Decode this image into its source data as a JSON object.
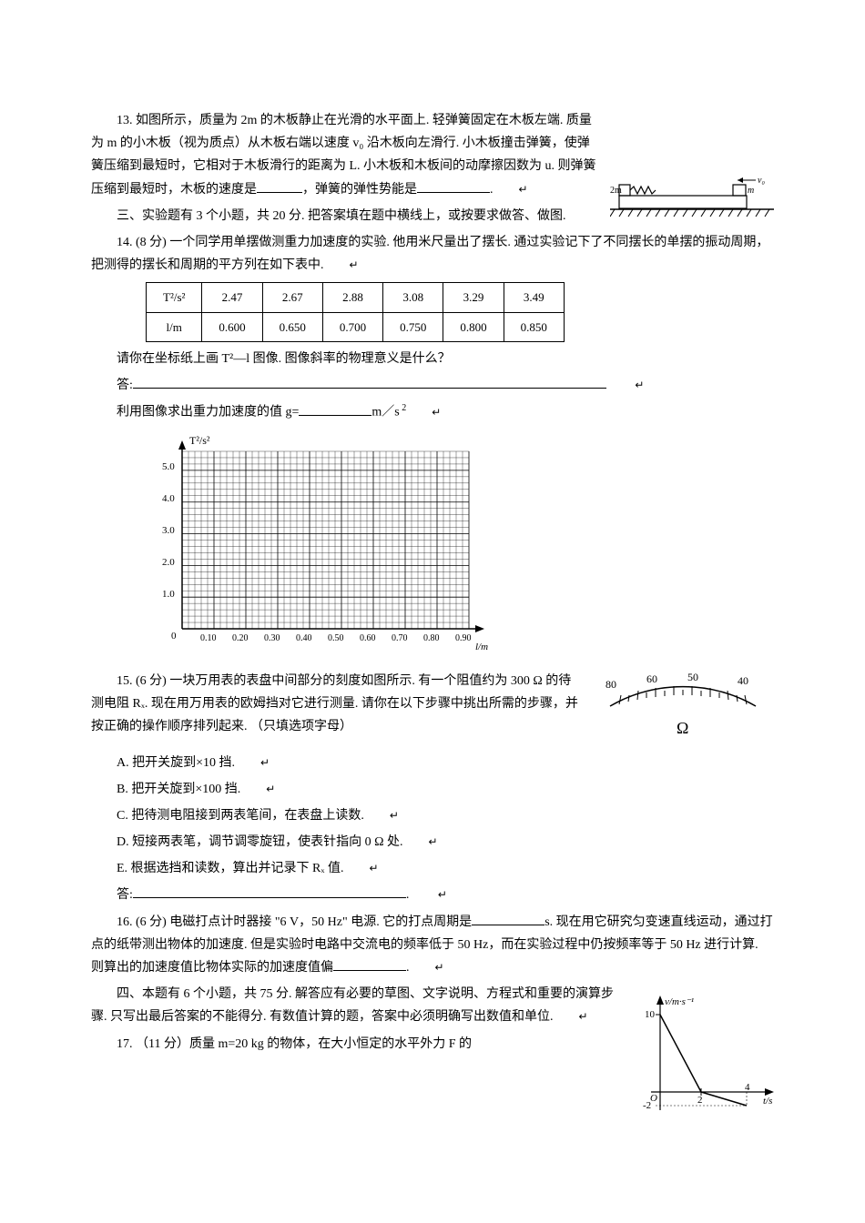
{
  "q13": {
    "text": "13. 如图所示，质量为 2m 的木板静止在光滑的水平面上. 轻弹簧固定在木板左端. 质量为 m 的小木板（视为质点）从木板右端以速度 v₀ 沿木板向左滑行. 小木板撞击弹簧，使弹簧压缩到最短时，它相对于木板滑行的距离为 L. 小木板和木板间的动摩擦因数为 u. 则弹簧压缩到最短时，木板的速度是",
    "text2": "，弹簧的弹性势能是",
    "text3": ".",
    "diagram": {
      "label_2m": "2m",
      "label_m": "m",
      "label_v0": "v₀"
    }
  },
  "section3": {
    "title": "三、实验题有 3 个小题，共 20 分. 把答案填在题中横线上，或按要求做答、做图."
  },
  "q14": {
    "intro": "14. (8 分) 一个同学用单摆做测重力加速度的实验. 他用米尺量出了摆长. 通过实验记下了不同摆长的单摆的振动周期，把测得的摆长和周期的平方列在如下表中.",
    "table": {
      "row1_label": "T²/s²",
      "row1": [
        "2.47",
        "2.67",
        "2.88",
        "3.08",
        "3.29",
        "3.49"
      ],
      "row2_label": "l/m",
      "row2": [
        "0.600",
        "0.650",
        "0.700",
        "0.750",
        "0.800",
        "0.850"
      ]
    },
    "prompt1": "请你在坐标纸上画 T²—l 图像. 图像斜率的物理意义是什么？",
    "answer_label": "答:",
    "prompt2_a": "利用图像求出重力加速度的值 g=",
    "prompt2_b": "m／s",
    "graph": {
      "ylabel": "T²/s²",
      "xlabel": "l/m",
      "yticks": [
        "1.0",
        "2.0",
        "3.0",
        "4.0",
        "5.0"
      ],
      "xticks": [
        "0.10",
        "0.20",
        "0.30",
        "0.40",
        "0.50",
        "0.60",
        "0.70",
        "0.80",
        "0.90"
      ],
      "bg_color": "#ffffff",
      "grid_color": "#000000"
    }
  },
  "q15": {
    "intro": "15. (6 分) 一块万用表的表盘中间部分的刻度如图所示. 有一个阻值约为 300 Ω 的待测电阻 Rₓ. 现在用万用表的欧姆挡对它进行测量. 请你在以下步骤中挑出所需的步骤，并按正确的操作顺序排列起来. （只填选项字母）",
    "options": {
      "A": "A. 把开关旋到×10 挡.",
      "B": "B. 把开关旋到×100 挡.",
      "C": "C. 把待测电阻接到两表笔间，在表盘上读数.",
      "D": "D. 短接两表笔，调节调零旋钮，使表针指向 0 Ω 处.",
      "E": "E. 根据选挡和读数，算出并记录下 Rₓ 值."
    },
    "answer_label": "答:",
    "dial": {
      "labels": [
        "80",
        "60",
        "50",
        "40"
      ],
      "unit": "Ω"
    }
  },
  "q16": {
    "text_a": "16. (6 分) 电磁打点计时器接 \"6 V，50 Hz\" 电源. 它的打点周期是",
    "text_b": "s. 现在用它研究匀变速直线运动，通过打点的纸带测出物体的加速度. 但是实验时电路中交流电的频率低于 50 Hz，而在实验过程中仍按频率等于 50 Hz 进行计算. 则算出的加速度值比物体实际的加速度值偏",
    "text_c": "."
  },
  "section4": {
    "title": "四、本题有 6 个小题，共 75 分. 解答应有必要的草图、文字说明、方程式和重要的演算步骤. 只写出最后答案的不能得分. 有数值计算的题，答案中必须明确写出数值和单位."
  },
  "q17": {
    "text": "17. （11 分）质量 m=20 kg 的物体，在大小恒定的水平外力 F 的",
    "graph": {
      "ylabel": "v/m·s⁻¹",
      "xlabel": "t/s",
      "y_max": "10",
      "y_neg": "-2",
      "x_tick1": "2",
      "x_tick2": "4"
    }
  },
  "return_symbol": "↵"
}
